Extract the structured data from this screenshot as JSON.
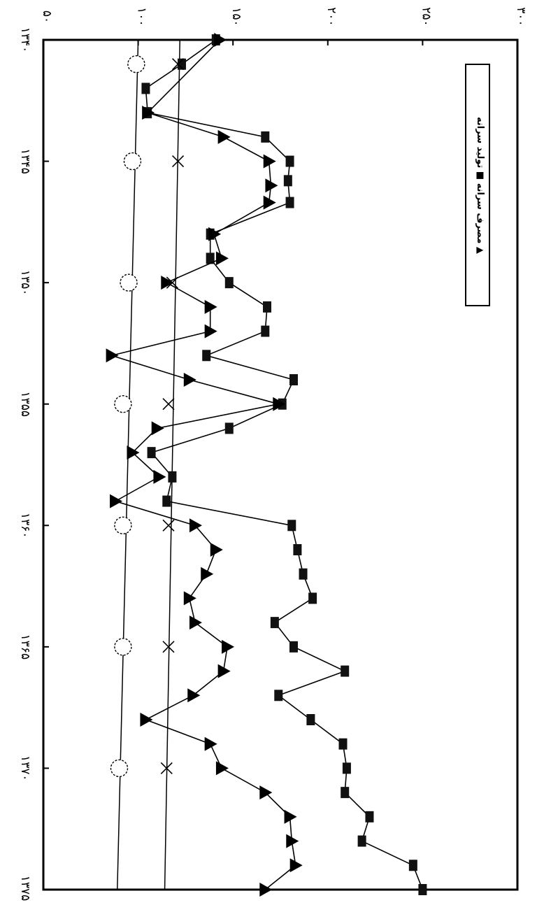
{
  "chart_data": {
    "type": "line",
    "orientation": "rotated-90",
    "x_axis": {
      "ticks": [
        1340,
        1345,
        1350,
        1355,
        1360,
        1365,
        1370,
        1375
      ],
      "tick_labels": [
        "۱۳۴۰",
        "۱۳۴۵",
        "۱۳۵۰",
        "۱۳۵۵",
        "۱۳۶۰",
        "۱۳۶۵",
        "۱۳۷۰",
        "۱۳۷۵"
      ],
      "range": [
        1340,
        1375
      ]
    },
    "y_axis": {
      "ticks": [
        50,
        100,
        150,
        200,
        250,
        300
      ],
      "tick_labels": [
        "۵۰",
        "۱۰۰",
        "۱۵۰",
        "۲۰۰",
        "۲۵۰",
        "۳۰۰"
      ],
      "range": [
        50,
        300
      ]
    },
    "grid": false,
    "legend_placement": "top-right",
    "legend_title": "مصرف سرانه ■  تولید سرانه ▲",
    "series": [
      {
        "name": "مصرف سرانه",
        "marker": "square",
        "points": [
          [
            1340,
            141
          ],
          [
            1341,
            123
          ],
          [
            1342,
            104
          ],
          [
            1343,
            105
          ],
          [
            1344,
            167
          ],
          [
            1345,
            180
          ],
          [
            1345.8,
            179
          ],
          [
            1346.7,
            180
          ],
          [
            1348,
            138
          ],
          [
            1349,
            138
          ],
          [
            1350,
            148
          ],
          [
            1351,
            168
          ],
          [
            1352,
            167
          ],
          [
            1353,
            136
          ],
          [
            1354,
            182
          ],
          [
            1355,
            176
          ],
          [
            1356,
            148
          ],
          [
            1357,
            107
          ],
          [
            1358,
            118
          ],
          [
            1359,
            115
          ],
          [
            1360,
            181
          ],
          [
            1361,
            184
          ],
          [
            1362,
            187
          ],
          [
            1363,
            192
          ],
          [
            1364,
            172
          ],
          [
            1365,
            182
          ],
          [
            1366,
            209
          ],
          [
            1367,
            174
          ],
          [
            1368,
            191
          ],
          [
            1369,
            208
          ],
          [
            1370,
            210
          ],
          [
            1371,
            209
          ],
          [
            1372,
            222
          ],
          [
            1373,
            218
          ],
          [
            1374,
            245
          ],
          [
            1375,
            250
          ]
        ]
      },
      {
        "name": "تولید سرانه",
        "marker": "triangle",
        "points": [
          [
            1340,
            143
          ],
          [
            1343,
            105
          ],
          [
            1344,
            145
          ],
          [
            1345,
            169
          ],
          [
            1346,
            170
          ],
          [
            1346.7,
            169
          ],
          [
            1348,
            140
          ],
          [
            1349,
            144
          ],
          [
            1350,
            115
          ],
          [
            1351,
            138
          ],
          [
            1352,
            138
          ],
          [
            1353,
            86
          ],
          [
            1354,
            127
          ],
          [
            1355,
            174
          ],
          [
            1356,
            110
          ],
          [
            1357,
            97
          ],
          [
            1358,
            111
          ],
          [
            1359,
            88
          ],
          [
            1360,
            130
          ],
          [
            1361,
            141
          ],
          [
            1362,
            136
          ],
          [
            1363,
            127
          ],
          [
            1364,
            130
          ],
          [
            1365,
            147
          ],
          [
            1366,
            145
          ],
          [
            1367,
            129
          ],
          [
            1368,
            104
          ],
          [
            1369,
            138
          ],
          [
            1370,
            144
          ],
          [
            1371,
            167
          ],
          [
            1372,
            180
          ],
          [
            1373,
            181
          ],
          [
            1374,
            183
          ],
          [
            1375,
            167
          ]
        ]
      },
      {
        "marker": "cross",
        "points": [
          [
            1341,
            121
          ],
          [
            1345,
            121
          ],
          [
            1350,
            118
          ],
          [
            1355,
            116
          ],
          [
            1360,
            116
          ],
          [
            1365,
            116
          ],
          [
            1370,
            115
          ]
        ]
      },
      {
        "marker": "circle",
        "points": [
          [
            1341,
            99
          ],
          [
            1345,
            97
          ],
          [
            1350,
            95
          ],
          [
            1355,
            92
          ],
          [
            1360,
            92
          ],
          [
            1365,
            92
          ],
          [
            1370,
            90
          ]
        ]
      }
    ],
    "reference_lines": [
      {
        "from": [
          1340,
          122
        ],
        "to": [
          1375,
          114
        ]
      },
      {
        "from": [
          1340,
          100
        ],
        "to": [
          1375,
          89
        ]
      }
    ]
  }
}
